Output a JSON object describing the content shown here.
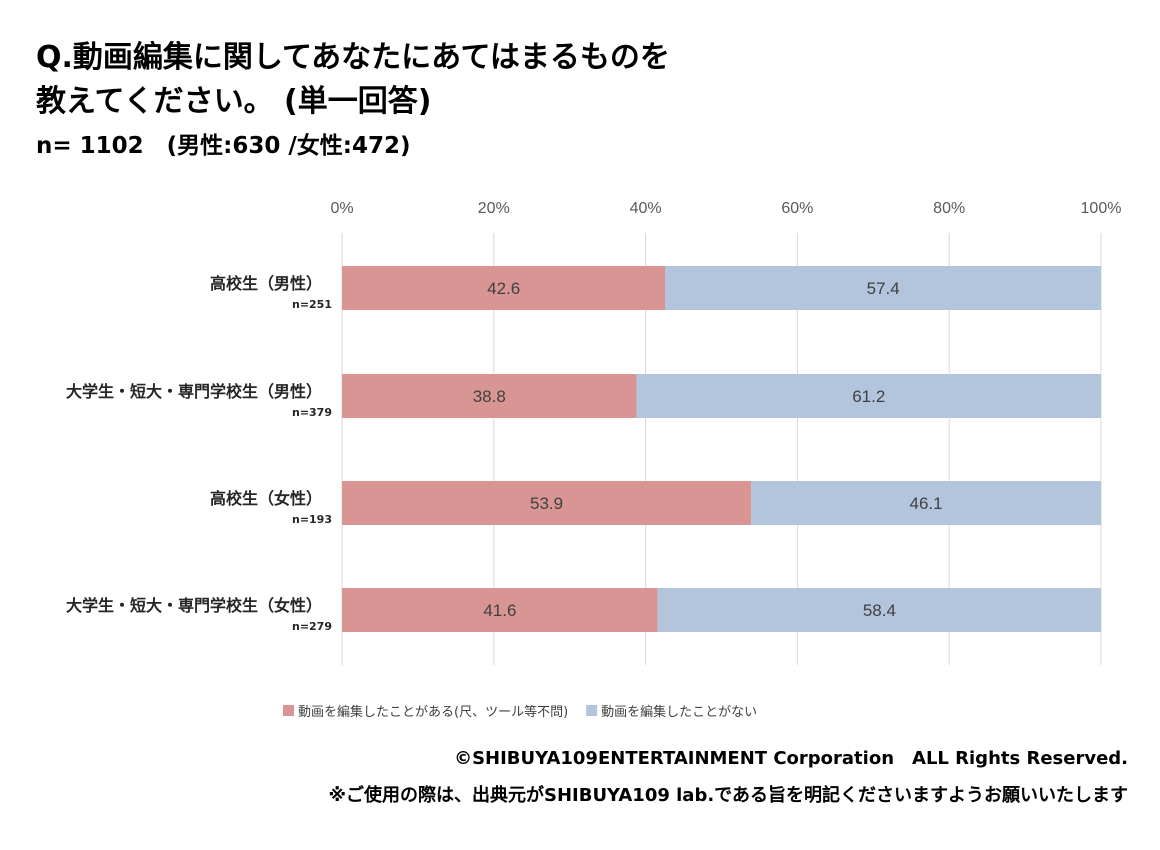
{
  "title": {
    "line1": "Q.動画編集に関してあなたにあてはまるものを",
    "line2": "教えてください。 (単一回答)"
  },
  "sample": "n= 1102　(男性:630 /女性:472)",
  "chart_data": {
    "type": "bar",
    "orientation": "horizontal",
    "stacked": true,
    "percent_stacked": true,
    "categories": [
      "高校生（男性）",
      "大学生・短大・専門学校生（男性）",
      "高校生（女性）",
      "大学生・短大・専門学校生（女性）"
    ],
    "category_n": [
      "n=251",
      "n=379",
      "n=193",
      "n=279"
    ],
    "series": [
      {
        "name": "動画を編集したことがある(尺、ツール等不問)",
        "values": [
          42.6,
          38.8,
          53.9,
          41.6
        ],
        "color": "#d99594"
      },
      {
        "name": "動画を編集したことがない",
        "values": [
          57.4,
          61.2,
          46.1,
          58.4
        ],
        "color": "#b3c5dc"
      }
    ],
    "x_ticks": [
      "0%",
      "20%",
      "40%",
      "60%",
      "80%",
      "100%"
    ],
    "xlim": [
      0,
      100
    ],
    "grid": true,
    "legend_position": "bottom"
  },
  "footer": {
    "copyright": "©SHIBUYA109ENTERTAINMENT Corporation　ALL Rights Reserved.",
    "note": "※ご使用の際は、出典元がSHIBUYA109 lab.である旨を明記くださいますようお願いいたします"
  }
}
